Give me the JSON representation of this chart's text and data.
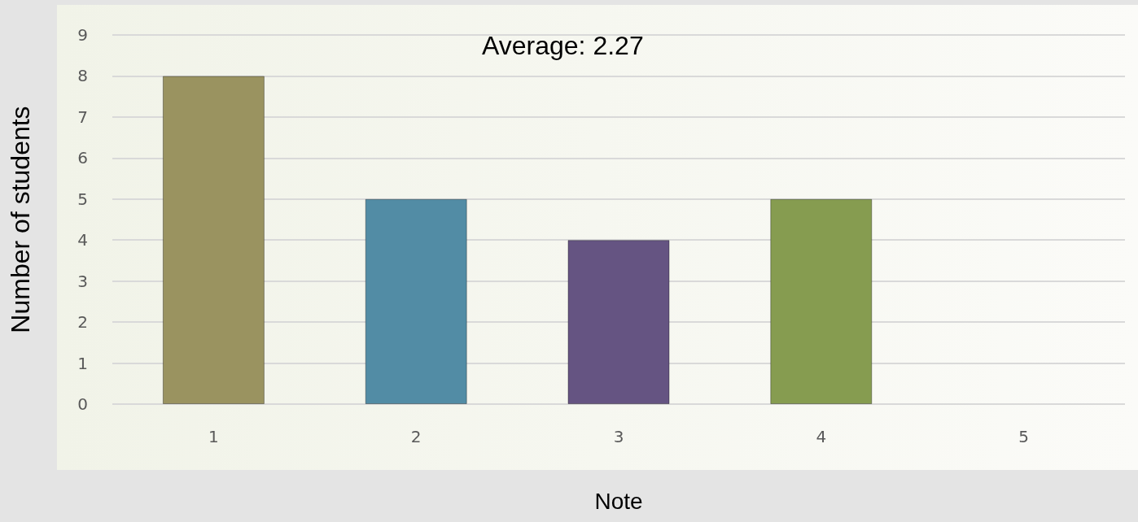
{
  "chart_data": {
    "type": "bar",
    "xlabel": "Note",
    "ylabel": "Number of students",
    "annotations": [
      "Average: 2.27"
    ],
    "categories": [
      "1",
      "2",
      "3",
      "4",
      "5"
    ],
    "values": [
      8,
      5,
      4,
      5,
      0
    ],
    "colors": [
      "#9a9360",
      "#528ca5",
      "#655482",
      "#869c50",
      null
    ],
    "ylim": [
      0,
      9
    ],
    "yticks": [
      0,
      1,
      2,
      3,
      4,
      5,
      6,
      7,
      8,
      9
    ],
    "grid": "y"
  }
}
